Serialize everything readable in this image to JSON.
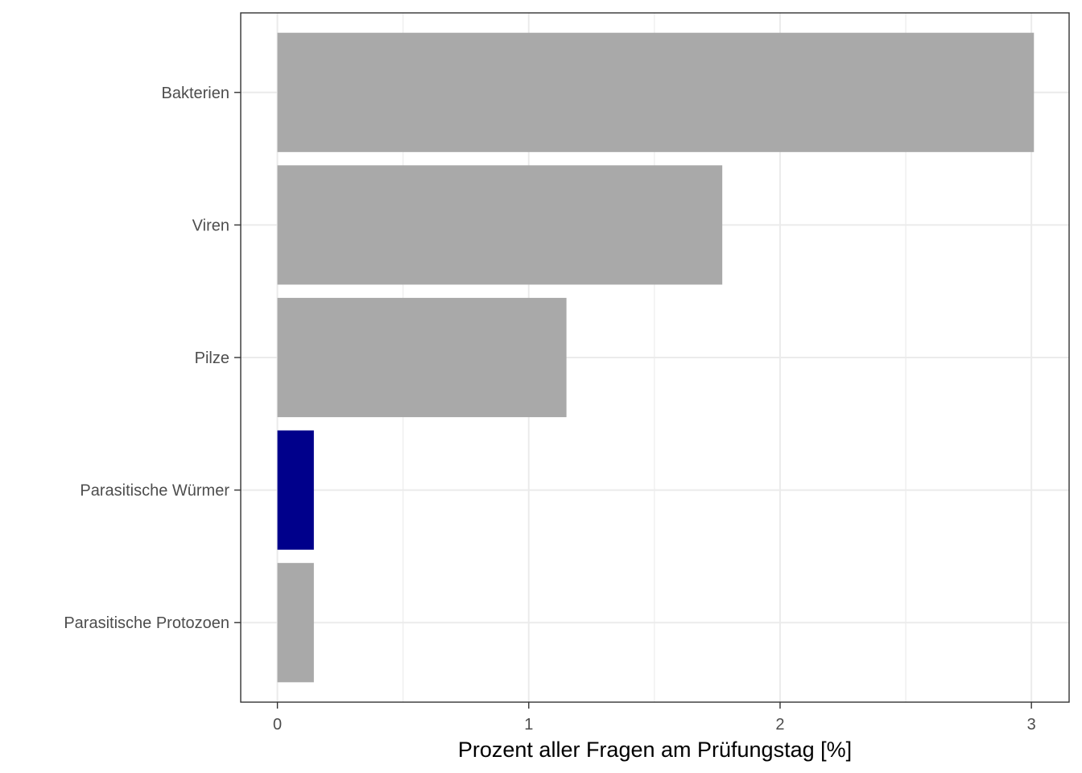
{
  "chart_data": {
    "type": "bar",
    "orientation": "horizontal",
    "title": "",
    "xlabel": "Prozent aller Fragen am Prüfungstag [%]",
    "ylabel": "",
    "categories": [
      "Bakterien",
      "Viren",
      "Pilze",
      "Parasitische Würmer",
      "Parasitische Protozoen"
    ],
    "values": [
      3.01,
      1.77,
      1.15,
      0.145,
      0.145
    ],
    "bar_colors": [
      "#A9A9A9",
      "#A9A9A9",
      "#A9A9A9",
      "#00008B",
      "#A9A9A9"
    ],
    "xlim": [
      -0.146,
      3.15
    ],
    "x_ticks": [
      0,
      1,
      2,
      3
    ],
    "x_tick_labels": [
      "0",
      "1",
      "2",
      "3"
    ],
    "grid": true,
    "legend": "none"
  },
  "colors": {
    "highlight": "#00008B",
    "default_bar": "#A9A9A9",
    "grid": "#EBEBEB",
    "panel_border": "#333333"
  }
}
